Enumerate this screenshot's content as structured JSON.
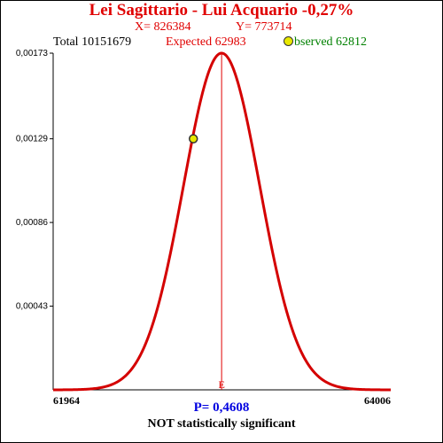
{
  "header": {
    "title": "Lei Sagittario - Lui Acquario  -0,27%",
    "x_text": "X= 826384",
    "y_text": "Y= 773714",
    "total_text": "Total  10151679",
    "expected_text": "Expected  62983",
    "observed_text": "bserved  62812"
  },
  "footer": {
    "p_text": "P= 0,4608",
    "verdict": "NOT statistically significant"
  },
  "colors": {
    "curve": "#d40000",
    "expected_line": "#e00000",
    "observed_marker": "#e8e800",
    "title": "#e00000",
    "p_value": "#0000e0",
    "observed_text": "#008000"
  },
  "chart_data": {
    "type": "line",
    "title": "Lei Sagittario - Lui Acquario  -0,27%",
    "xlim": [
      61964,
      64006
    ],
    "ylim": [
      0,
      0.00173
    ],
    "x_tick_labels": [
      "61964",
      "64006"
    ],
    "y_tick_labels": [
      "0,00173",
      "0,00129",
      "0,00086",
      "0,00043"
    ],
    "y_ticks": [
      0.00173,
      0.00129,
      0.00086,
      0.00043
    ],
    "expected": 62983,
    "expected_label": "E",
    "observed": 62812,
    "observed_density": 0.00129,
    "curve": {
      "distribution": "normal",
      "mean": 62983,
      "sd": 230.5,
      "peak": 0.00173
    },
    "grid": false
  }
}
